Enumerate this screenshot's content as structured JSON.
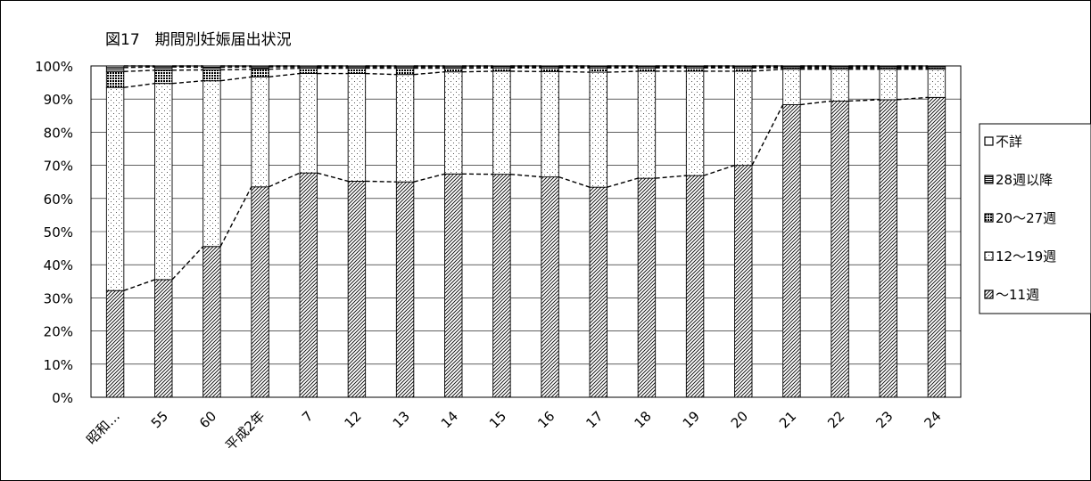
{
  "chart_data": {
    "type": "bar",
    "stacked": "percent",
    "title": "図17　期間別妊娠届出状況",
    "categories": [
      "昭和…",
      "55",
      "60",
      "平成2年",
      "7",
      "12",
      "13",
      "14",
      "15",
      "16",
      "17",
      "18",
      "19",
      "20",
      "21",
      "22",
      "23",
      "24"
    ],
    "y_ticks": [
      "0%",
      "10%",
      "20%",
      "30%",
      "40%",
      "50%",
      "60%",
      "70%",
      "80%",
      "90%",
      "100%"
    ],
    "ylim": [
      0,
      100
    ],
    "grid": "horizontal",
    "legend_position": "right",
    "series": [
      {
        "name": "～11週",
        "pattern": "diagonal-hatch",
        "values": [
          32.2,
          35.5,
          45.5,
          63.5,
          67.7,
          65.2,
          65.0,
          67.4,
          67.3,
          66.5,
          63.4,
          66.1,
          66.9,
          70.0,
          88.3,
          89.4,
          89.8,
          90.5
        ]
      },
      {
        "name": "12～19週",
        "pattern": "dotted",
        "values": [
          61.3,
          59.2,
          50.0,
          33.2,
          30.0,
          32.5,
          32.4,
          30.8,
          31.1,
          31.8,
          34.7,
          32.3,
          31.5,
          28.4,
          10.7,
          9.6,
          9.2,
          8.5
        ]
      },
      {
        "name": "20～27週",
        "pattern": "dense-dots",
        "values": [
          4.8,
          4.0,
          3.3,
          2.3,
          1.6,
          1.6,
          1.9,
          1.1,
          1.0,
          1.1,
          1.3,
          1.0,
          1.0,
          1.0,
          0.4,
          0.4,
          0.4,
          0.4
        ]
      },
      {
        "name": "28週以降",
        "pattern": "horizontal-lines",
        "values": [
          1.2,
          1.0,
          0.8,
          0.7,
          0.4,
          0.4,
          0.4,
          0.4,
          0.4,
          0.4,
          0.4,
          0.4,
          0.4,
          0.4,
          0.4,
          0.4,
          0.4,
          0.4
        ]
      },
      {
        "name": "不詳",
        "pattern": "white",
        "values": [
          0.5,
          0.3,
          0.4,
          0.3,
          0.3,
          0.3,
          0.3,
          0.3,
          0.2,
          0.2,
          0.2,
          0.2,
          0.2,
          0.2,
          0.2,
          0.2,
          0.2,
          0.2
        ]
      }
    ],
    "legend_order": [
      "不詳",
      "28週以降",
      "20～27週",
      "12～19週",
      "～11週"
    ],
    "connector_lines": "dashed lines joining series boundaries between bars"
  }
}
